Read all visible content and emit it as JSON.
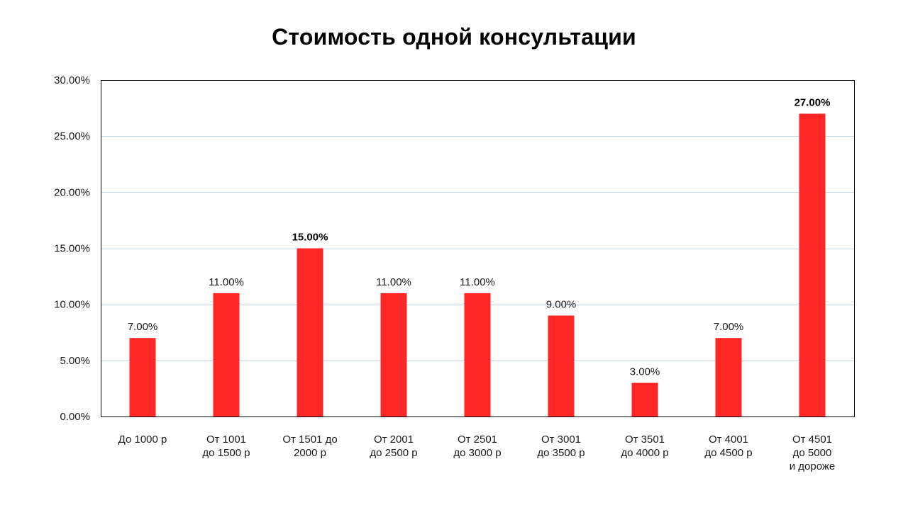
{
  "chart_data": {
    "type": "bar",
    "title": "Стоимость одной консультации",
    "xlabel": "",
    "ylabel": "",
    "ylim": [
      0,
      30
    ],
    "y_tick_values": [
      0,
      5,
      10,
      15,
      20,
      25,
      30
    ],
    "y_tick_labels": [
      "0.00%",
      "5.00%",
      "10.00%",
      "15.00%",
      "20.00%",
      "25.00%",
      "30.00%"
    ],
    "grid": true,
    "legend": "none",
    "categories": [
      [
        "До 1000 р"
      ],
      [
        "От 1001",
        "до 1500 р"
      ],
      [
        "От 1501 до",
        "2000 р"
      ],
      [
        "От 2001",
        "до 2500 р"
      ],
      [
        "От 2501",
        "до 3000 р"
      ],
      [
        "От 3001",
        "до 3500 р"
      ],
      [
        "От 3501",
        "до 4000 р"
      ],
      [
        "От 4001",
        "до 4500 р"
      ],
      [
        "От 4501",
        "до 5000",
        "и дороже"
      ]
    ],
    "values": [
      7,
      11,
      15,
      11,
      11,
      9,
      3,
      7,
      27
    ],
    "data_labels": [
      "7.00%",
      "11.00%",
      "15.00%",
      "11.00%",
      "11.00%",
      "9.00%",
      "3.00%",
      "7.00%",
      "27.00%"
    ],
    "highlighted": [
      false,
      false,
      true,
      false,
      false,
      false,
      false,
      false,
      true
    ],
    "colors": {
      "bar": "#ff2626",
      "grid": "#c5d3e6",
      "frame": "#000000"
    }
  }
}
